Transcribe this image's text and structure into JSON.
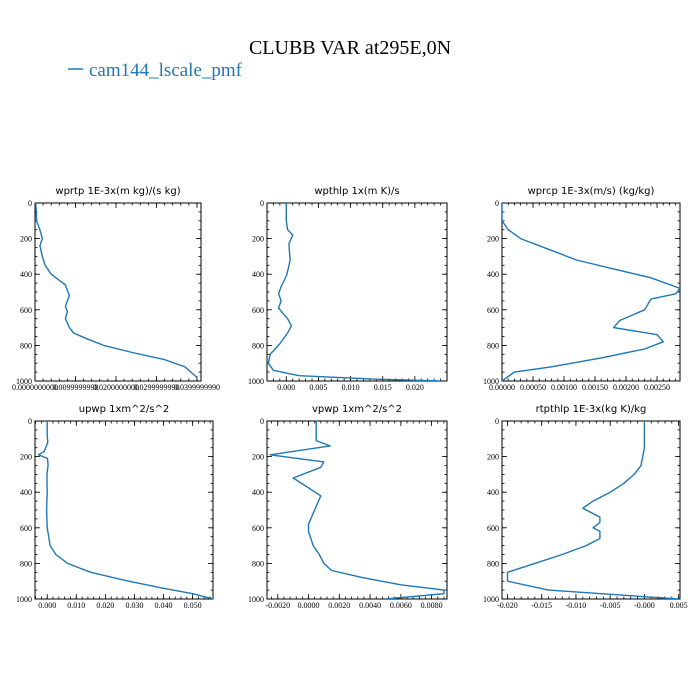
{
  "figure": {
    "title": "CLUBB VAR at295E,0N",
    "legend": [
      {
        "label": "cam144_lscale_pmf",
        "color": "#1f77b4"
      }
    ]
  },
  "chart_data": [
    {
      "type": "line",
      "title": "wprtp  1E-3x(m kg)/(s kg)",
      "xlim": [
        0,
        0.041
      ],
      "ylim": [
        1000,
        0
      ],
      "y_inverted": true,
      "xticks": [
        0,
        0.01,
        0.02,
        0.03,
        0.04
      ],
      "xtick_labels": [
        "0.0000000000",
        "0.0099999998",
        "0.0200000000",
        "0.0299999990",
        "0.0399999990"
      ],
      "yticks": [
        0,
        200,
        400,
        600,
        800,
        1000
      ],
      "ytick_labels": [
        "0",
        "200",
        "400",
        "600",
        "800",
        "1000"
      ],
      "series": [
        {
          "color": "#1f77b4",
          "x": [
            0.0002,
            0.0004,
            0.0012,
            0.0018,
            0.0012,
            0.0018,
            0.0025,
            0.004,
            0.0075,
            0.0085,
            0.0075,
            0.008,
            0.0075,
            0.0085,
            0.0095,
            0.0125,
            0.017,
            0.024,
            0.032,
            0.037,
            0.0385,
            0.04
          ],
          "y": [
            0,
            100,
            150,
            200,
            240,
            300,
            350,
            400,
            460,
            520,
            580,
            610,
            650,
            700,
            730,
            760,
            800,
            840,
            880,
            920,
            950,
            980
          ]
        }
      ]
    },
    {
      "type": "line",
      "title": "wpthlp  1x(m K)/s",
      "xlim": [
        -0.003,
        0.025
      ],
      "ylim": [
        1000,
        0
      ],
      "y_inverted": true,
      "xticks": [
        0,
        0.005,
        0.01,
        0.015,
        0.02
      ],
      "xtick_labels": [
        "0.000",
        "0.005",
        "0.010",
        "0.015",
        "0.020"
      ],
      "yticks": [
        0,
        200,
        400,
        600,
        800,
        1000
      ],
      "ytick_labels": [
        "0",
        "200",
        "400",
        "600",
        "800",
        "1000"
      ],
      "series": [
        {
          "color": "#1f77b4",
          "x": [
            0,
            0,
            0.0002,
            0.001,
            0.0004,
            0.0006,
            0.0003,
            0,
            -0.0008,
            -0.0012,
            -0.0008,
            -0.0012,
            -0.0005,
            0.0002,
            0.0008,
            0.0002,
            -0.001,
            -0.0025,
            -0.0028,
            -0.002,
            0.002,
            0.014,
            0.024
          ],
          "y": [
            0,
            100,
            150,
            180,
            230,
            320,
            370,
            410,
            470,
            510,
            550,
            590,
            620,
            650,
            690,
            730,
            790,
            850,
            900,
            940,
            970,
            990,
            1000
          ]
        }
      ]
    },
    {
      "type": "line",
      "title": "wprcp  1E-3x(m/s) (kg/kg)",
      "xlim": [
        0,
        0.00287
      ],
      "ylim": [
        1000,
        0
      ],
      "y_inverted": true,
      "xticks": [
        0,
        0.0005,
        0.001,
        0.0015,
        0.002,
        0.0025
      ],
      "xtick_labels": [
        "0.00000",
        "0.00050",
        "0.00100",
        "0.00150",
        "0.00200",
        "0.00250"
      ],
      "yticks": [
        0,
        200,
        400,
        600,
        800,
        1000
      ],
      "ytick_labels": [
        "0",
        "200",
        "400",
        "600",
        "800",
        "1000"
      ],
      "series": [
        {
          "color": "#1f77b4",
          "x": [
            0,
            0,
            0.0001,
            0.0003,
            0.0006,
            0.0009,
            0.0012,
            0.0018,
            0.0024,
            0.00287,
            0.0028,
            0.0024,
            0.0023,
            0.0019,
            0.0018,
            0.0025,
            0.0026,
            0.0023,
            0.0016,
            0.0008,
            0.0002,
            0.0001,
            0
          ],
          "y": [
            0,
            100,
            150,
            200,
            240,
            280,
            320,
            370,
            420,
            480,
            510,
            540,
            600,
            660,
            700,
            740,
            780,
            820,
            870,
            920,
            950,
            975,
            1000
          ]
        }
      ]
    },
    {
      "type": "line",
      "title": "upwp  1xm^2/s^2",
      "xlim": [
        -0.0042,
        0.057
      ],
      "ylim": [
        1000,
        0
      ],
      "y_inverted": true,
      "xticks": [
        0,
        0.01,
        0.02,
        0.03,
        0.04,
        0.05
      ],
      "xtick_labels": [
        "0.000",
        "0.010",
        "0.020",
        "0.030",
        "0.040",
        "0.050"
      ],
      "yticks": [
        0,
        200,
        400,
        600,
        800,
        1000
      ],
      "ytick_labels": [
        "0",
        "200",
        "400",
        "600",
        "800",
        "1000"
      ],
      "series": [
        {
          "color": "#1f77b4",
          "x": [
            0,
            0,
            0.0002,
            -0.001,
            -0.003,
            0.0001,
            0.0003,
            -0.0001,
            0,
            -0.0002,
            0,
            0.0005,
            0.001,
            0.003,
            0.007,
            0.015,
            0.028,
            0.04,
            0.05,
            0.057
          ],
          "y": [
            0,
            80,
            120,
            170,
            190,
            210,
            250,
            300,
            400,
            500,
            600,
            650,
            700,
            750,
            800,
            850,
            900,
            940,
            970,
            1000
          ]
        }
      ]
    },
    {
      "type": "line",
      "title": "vpwp  1xm^2/s^2",
      "xlim": [
        -0.0027,
        0.009
      ],
      "ylim": [
        1000,
        0
      ],
      "y_inverted": true,
      "xticks": [
        -0.002,
        0,
        0.002,
        0.004,
        0.006,
        0.008
      ],
      "xtick_labels": [
        "-0.0020",
        "0.0000",
        "0.0020",
        "0.0040",
        "0.0060",
        "0.0080"
      ],
      "yticks": [
        0,
        200,
        400,
        600,
        800,
        1000
      ],
      "ytick_labels": [
        "0",
        "200",
        "400",
        "600",
        "800",
        "1000"
      ],
      "series": [
        {
          "color": "#1f77b4",
          "x": [
            0.0005,
            0.0005,
            0.0014,
            -0.0025,
            0.001,
            0.0008,
            -0.001,
            0.0008,
            0.0005,
            0,
            0,
            0.0003,
            0.0007,
            0.001,
            0.0015,
            0.0035,
            0.006,
            0.0088,
            0.0088,
            0.005
          ],
          "y": [
            0,
            110,
            140,
            190,
            230,
            260,
            320,
            420,
            480,
            580,
            620,
            700,
            750,
            800,
            840,
            880,
            920,
            950,
            970,
            1000
          ]
        }
      ]
    },
    {
      "type": "line",
      "title": "rtpthlp  1E-3x(kg K)/kg",
      "xlim": [
        -0.0208,
        0.0052
      ],
      "ylim": [
        1000,
        0
      ],
      "y_inverted": true,
      "xticks": [
        -0.02,
        -0.015,
        -0.01,
        -0.005,
        0,
        0.005
      ],
      "xtick_labels": [
        "-0.020",
        "-0.015",
        "-0.010",
        "-0.005",
        "-0.000",
        "0.005"
      ],
      "yticks": [
        0,
        200,
        400,
        600,
        800,
        1000
      ],
      "ytick_labels": [
        "0",
        "200",
        "400",
        "600",
        "800",
        "1000"
      ],
      "series": [
        {
          "color": "#1f77b4",
          "x": [
            0,
            0,
            -0.0005,
            -0.0015,
            -0.003,
            -0.005,
            -0.0075,
            -0.009,
            -0.0065,
            -0.0065,
            -0.0075,
            -0.0065,
            -0.0065,
            -0.0085,
            -0.012,
            -0.016,
            -0.02,
            -0.02,
            -0.014,
            0.005
          ],
          "y": [
            0,
            150,
            250,
            300,
            350,
            400,
            450,
            490,
            540,
            570,
            600,
            620,
            660,
            700,
            750,
            800,
            850,
            900,
            950,
            1000
          ]
        }
      ]
    }
  ]
}
